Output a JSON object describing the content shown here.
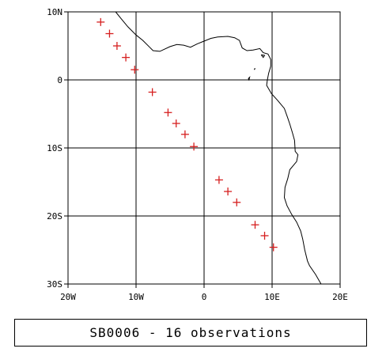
{
  "map": {
    "lat_labels": [
      "10N",
      "0",
      "10S",
      "20S",
      "30S"
    ],
    "lon_labels": [
      "20W",
      "10W",
      "0",
      "10E",
      "20E"
    ],
    "lat_range": [
      -30,
      10
    ],
    "lon_range": [
      -20,
      20
    ],
    "marker_symbol": "+",
    "marker_color": "#d62020",
    "observations": [
      {
        "lon": -15.2,
        "lat": 8.5
      },
      {
        "lon": -13.9,
        "lat": 6.8
      },
      {
        "lon": -12.8,
        "lat": 5.0
      },
      {
        "lon": -11.5,
        "lat": 3.3
      },
      {
        "lon": -10.2,
        "lat": 1.5
      },
      {
        "lon": -7.6,
        "lat": -1.8
      },
      {
        "lon": -5.3,
        "lat": -4.8
      },
      {
        "lon": -4.1,
        "lat": -6.4
      },
      {
        "lon": -2.8,
        "lat": -8.0
      },
      {
        "lon": -1.5,
        "lat": -9.8
      },
      {
        "lon": 2.2,
        "lat": -14.7
      },
      {
        "lon": 3.5,
        "lat": -16.4
      },
      {
        "lon": 4.8,
        "lat": -18.0
      },
      {
        "lon": 7.5,
        "lat": -21.3
      },
      {
        "lon": 8.9,
        "lat": -22.9
      },
      {
        "lon": 10.2,
        "lat": -24.6
      }
    ],
    "coastline": [
      [
        -13.0,
        10.0
      ],
      [
        -12.2,
        9.0
      ],
      [
        -11.2,
        7.8
      ],
      [
        -10.0,
        6.6
      ],
      [
        -9.0,
        5.8
      ],
      [
        -8.0,
        4.8
      ],
      [
        -7.5,
        4.3
      ],
      [
        -6.5,
        4.2
      ],
      [
        -5.0,
        4.9
      ],
      [
        -4.0,
        5.2
      ],
      [
        -3.0,
        5.1
      ],
      [
        -2.0,
        4.8
      ],
      [
        -1.0,
        5.3
      ],
      [
        0.0,
        5.7
      ],
      [
        1.0,
        6.1
      ],
      [
        2.0,
        6.3
      ],
      [
        3.5,
        6.4
      ],
      [
        4.5,
        6.2
      ],
      [
        5.2,
        5.8
      ],
      [
        5.6,
        4.7
      ],
      [
        6.3,
        4.3
      ],
      [
        7.2,
        4.4
      ],
      [
        8.2,
        4.6
      ],
      [
        8.7,
        4.0
      ],
      [
        9.4,
        3.8
      ],
      [
        9.8,
        3.0
      ],
      [
        9.8,
        2.0
      ],
      [
        9.5,
        1.0
      ],
      [
        9.3,
        0.0
      ],
      [
        9.2,
        -0.8
      ],
      [
        9.9,
        -2.0
      ],
      [
        10.8,
        -3.0
      ],
      [
        11.8,
        -4.2
      ],
      [
        12.3,
        -5.6
      ],
      [
        12.6,
        -6.5
      ],
      [
        13.0,
        -7.8
      ],
      [
        13.3,
        -8.9
      ],
      [
        13.4,
        -10.5
      ],
      [
        13.8,
        -11.0
      ],
      [
        13.6,
        -12.0
      ],
      [
        12.6,
        -13.2
      ],
      [
        12.3,
        -14.5
      ],
      [
        11.9,
        -15.8
      ],
      [
        11.8,
        -17.3
      ],
      [
        12.2,
        -18.5
      ],
      [
        12.9,
        -19.8
      ],
      [
        13.6,
        -20.9
      ],
      [
        14.2,
        -22.2
      ],
      [
        14.5,
        -23.4
      ],
      [
        14.8,
        -25.0
      ],
      [
        15.2,
        -26.6
      ],
      [
        15.5,
        -27.3
      ],
      [
        16.4,
        -28.6
      ],
      [
        17.2,
        -30.0
      ]
    ],
    "islands": [
      [
        [
          8.4,
          3.7
        ],
        [
          8.9,
          3.6
        ],
        [
          8.7,
          3.3
        ],
        [
          8.4,
          3.7
        ]
      ],
      [
        [
          6.5,
          0.2
        ],
        [
          6.7,
          0.4
        ],
        [
          6.6,
          0.0
        ],
        [
          6.5,
          0.2
        ]
      ],
      [
        [
          7.4,
          1.6
        ],
        [
          7.5,
          1.7
        ],
        [
          7.4,
          1.5
        ],
        [
          7.4,
          1.6
        ]
      ]
    ]
  },
  "caption": "SB0006 - 16 observations"
}
